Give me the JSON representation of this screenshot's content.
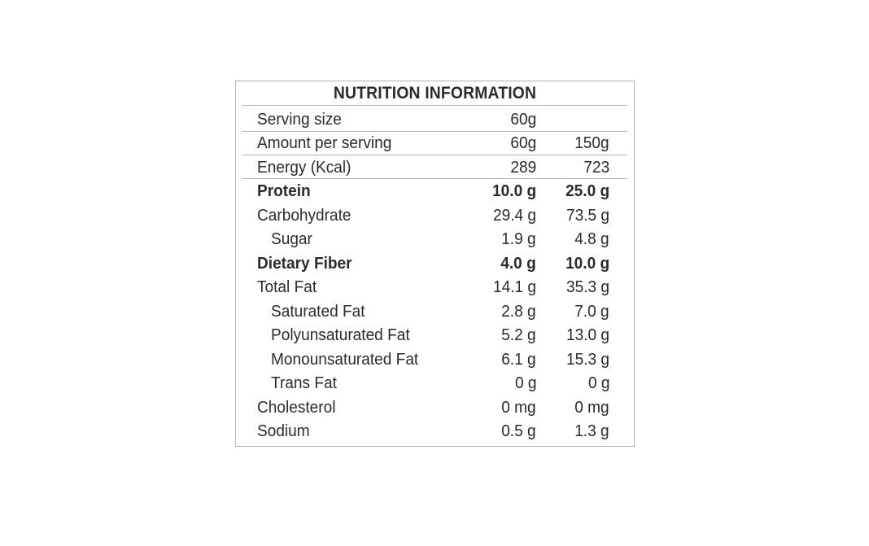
{
  "title": "NUTRITION INFORMATION",
  "serving_size": {
    "label": "Serving size",
    "value": "60g"
  },
  "amount_per_serving": {
    "label": "Amount per serving",
    "col1": "60g",
    "col2": "150g"
  },
  "energy": {
    "label": "Energy (Kcal)",
    "col1": "289",
    "col2": "723"
  },
  "nutrients": [
    {
      "label": "Protein",
      "col1": "10.0 g",
      "col2": "25.0 g",
      "bold": true,
      "indent": false
    },
    {
      "label": "Carbohydrate",
      "col1": "29.4 g",
      "col2": "73.5 g",
      "bold": false,
      "indent": false
    },
    {
      "label": "Sugar",
      "col1": "1.9 g",
      "col2": "4.8 g",
      "bold": false,
      "indent": true
    },
    {
      "label": "Dietary Fiber",
      "col1": "4.0 g",
      "col2": "10.0 g",
      "bold": true,
      "indent": false
    },
    {
      "label": "Total Fat",
      "col1": "14.1 g",
      "col2": "35.3 g",
      "bold": false,
      "indent": false
    },
    {
      "label": "Saturated Fat",
      "col1": "2.8 g",
      "col2": "7.0 g",
      "bold": false,
      "indent": true
    },
    {
      "label": "Polyunsaturated Fat",
      "col1": "5.2 g",
      "col2": "13.0 g",
      "bold": false,
      "indent": true
    },
    {
      "label": "Monounsaturated Fat",
      "col1": "6.1 g",
      "col2": "15.3 g",
      "bold": false,
      "indent": true
    },
    {
      "label": "Trans Fat",
      "col1": "0 g",
      "col2": "0 g",
      "bold": false,
      "indent": true
    },
    {
      "label": "Cholesterol",
      "col1": "0 mg",
      "col2": "0 mg",
      "bold": false,
      "indent": false
    },
    {
      "label": "Sodium",
      "col1": "0.5 g",
      "col2": "1.3 g",
      "bold": false,
      "indent": false
    }
  ]
}
